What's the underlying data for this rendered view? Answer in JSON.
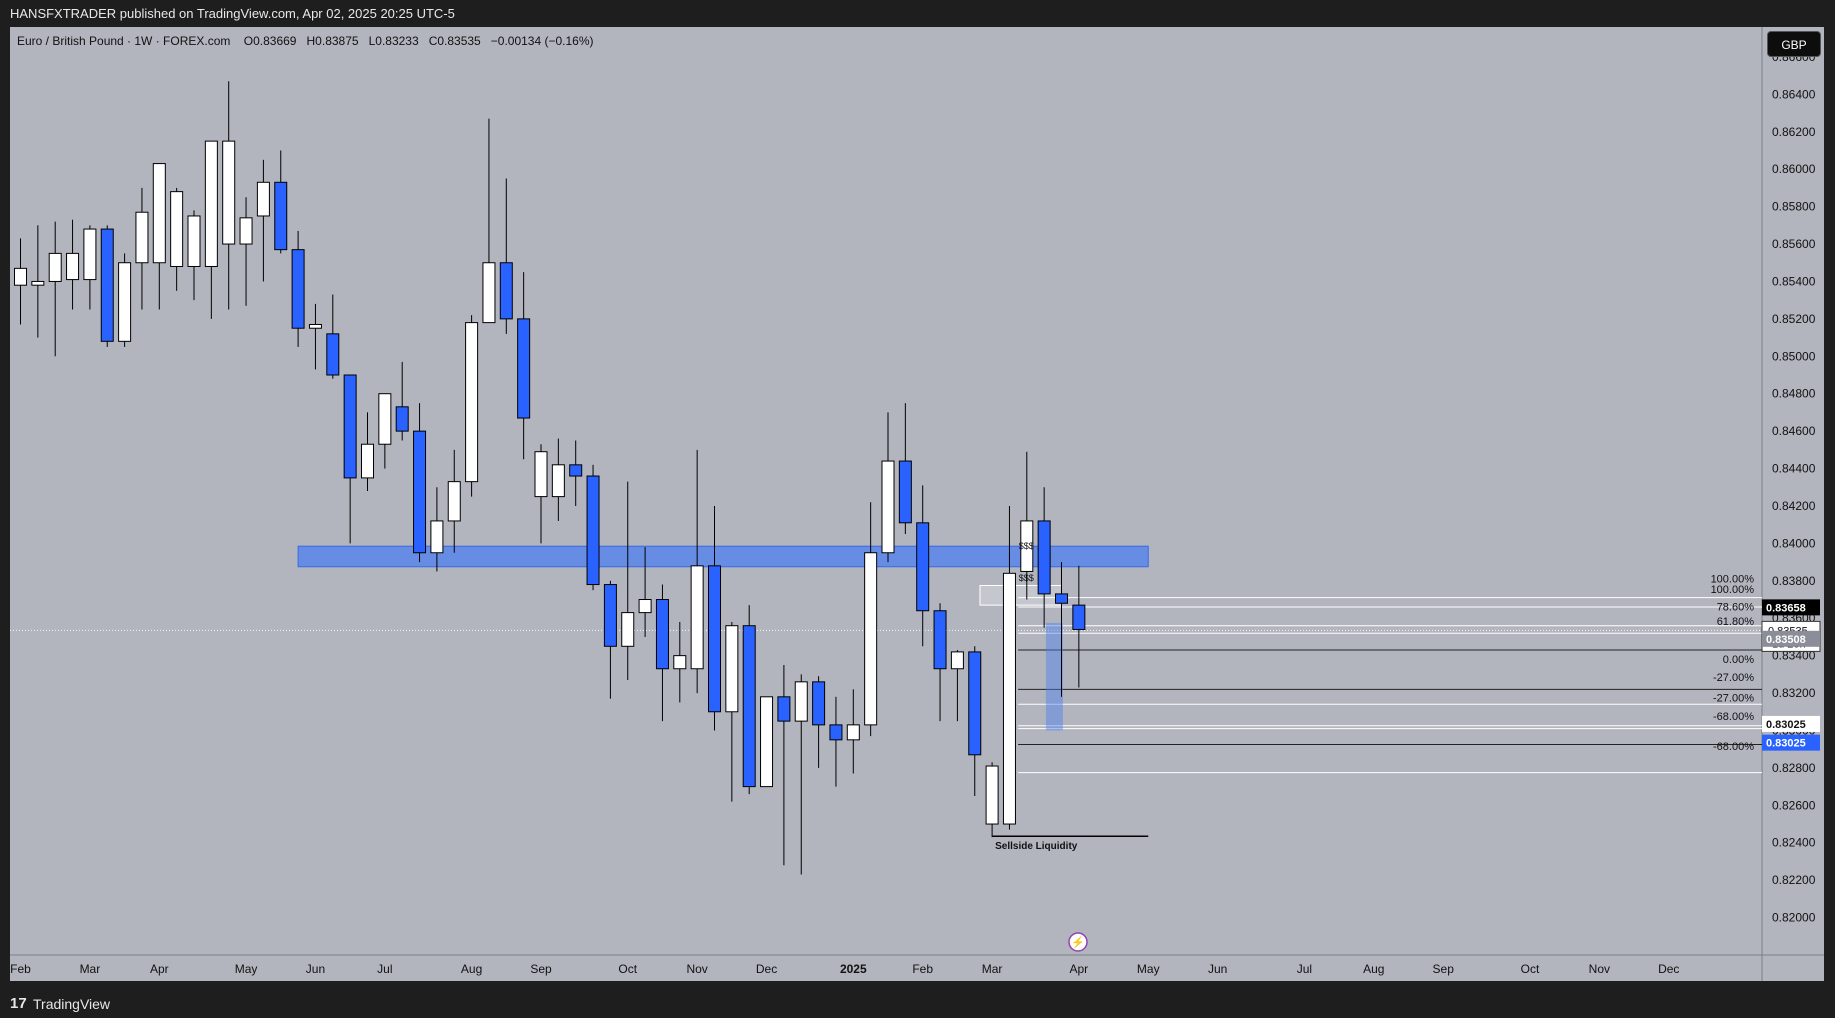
{
  "header": {
    "published_text": "HANSFXTRADER published on TradingView.com, Apr 02, 2025 20:25 UTC-5"
  },
  "legend": {
    "symbol": "Euro / British Pound · 1W · FOREX.com",
    "open": "O0.83669",
    "high": "H0.83875",
    "low": "L0.83233",
    "close": "C0.83535",
    "change": "−0.00134 (−0.16%)"
  },
  "currency_button": "GBP",
  "footer": {
    "brand": "TradingView",
    "logo_mark": "17"
  },
  "colors": {
    "background": "#b2b5be",
    "bull": "#ffffff",
    "bear": "#2962ff",
    "wick": "#000000",
    "zone": "#4c7ff0",
    "axis_bg": "#b2b5be",
    "outer": "#1e1e1e"
  },
  "annotations": {
    "sellside": "Sellside Liquidity",
    "sss_1": "$$$",
    "sss_2": "$$$",
    "fib_labels": [
      "100.00%",
      "100.00%",
      "78.60%",
      "61.80%",
      "0.00%",
      "-27.00%",
      "-27.00%",
      "-68.00%",
      "-68.00%"
    ]
  },
  "price_labels": {
    "p1": "0.83658",
    "p2": "0.83535",
    "p2_sub": "1d 20h",
    "p3": "0.83508",
    "p4": "0.83025",
    "p5": "0.83025"
  },
  "chart_data": {
    "type": "candlestick",
    "title": "Euro / British Pound · 1W · FOREX.com",
    "ylim": [
      0.818,
      0.8676
    ],
    "yticks": [
      0.82,
      0.822,
      0.824,
      0.826,
      0.828,
      0.83,
      0.832,
      0.834,
      0.836,
      0.838,
      0.84,
      0.842,
      0.844,
      0.846,
      0.848,
      0.85,
      0.852,
      0.854,
      0.856,
      0.858,
      0.86,
      0.862,
      0.864,
      0.866
    ],
    "ytick_labels": [
      "0.82000",
      "0.82200",
      "0.82400",
      "0.82600",
      "0.82800",
      "0.83000",
      "0.83200",
      "0.83400",
      "0.83600",
      "0.83800",
      "0.84000",
      "0.84200",
      "0.84400",
      "0.84600",
      "0.84800",
      "0.85000",
      "0.85200",
      "0.85400",
      "0.85600",
      "0.85800",
      "0.86000",
      "0.86200",
      "0.86400",
      "0.86600"
    ],
    "xtick_labels": [
      {
        "label": "Feb",
        "week": 0
      },
      {
        "label": "Mar",
        "week": 4
      },
      {
        "label": "Apr",
        "week": 8
      },
      {
        "label": "May",
        "week": 13
      },
      {
        "label": "Jun",
        "week": 17
      },
      {
        "label": "Jul",
        "week": 21
      },
      {
        "label": "Aug",
        "week": 26
      },
      {
        "label": "Sep",
        "week": 30
      },
      {
        "label": "Oct",
        "week": 35
      },
      {
        "label": "Nov",
        "week": 39
      },
      {
        "label": "Dec",
        "week": 43
      },
      {
        "label": "2025",
        "week": 48,
        "bold": true
      },
      {
        "label": "Feb",
        "week": 52
      },
      {
        "label": "Mar",
        "week": 56
      },
      {
        "label": "Apr",
        "week": 61
      },
      {
        "label": "May",
        "week": 65
      },
      {
        "label": "Jun",
        "week": 69
      },
      {
        "label": "Jul",
        "week": 74
      },
      {
        "label": "Aug",
        "week": 78
      },
      {
        "label": "Sep",
        "week": 82
      },
      {
        "label": "Oct",
        "week": 87
      },
      {
        "label": "Nov",
        "week": 91
      },
      {
        "label": "Dec",
        "week": 95
      }
    ],
    "candles": [
      {
        "o": 0.8538,
        "h": 0.8563,
        "l": 0.8517,
        "c": 0.8547
      },
      {
        "o": 0.8538,
        "h": 0.857,
        "l": 0.851,
        "c": 0.854
      },
      {
        "o": 0.854,
        "h": 0.8572,
        "l": 0.85,
        "c": 0.8555
      },
      {
        "o": 0.8541,
        "h": 0.8573,
        "l": 0.8525,
        "c": 0.8555
      },
      {
        "o": 0.8541,
        "h": 0.857,
        "l": 0.8525,
        "c": 0.8568
      },
      {
        "o": 0.8568,
        "h": 0.857,
        "l": 0.8505,
        "c": 0.8508
      },
      {
        "o": 0.8508,
        "h": 0.8555,
        "l": 0.8505,
        "c": 0.855
      },
      {
        "o": 0.855,
        "h": 0.859,
        "l": 0.8525,
        "c": 0.8577
      },
      {
        "o": 0.855,
        "h": 0.8603,
        "l": 0.8525,
        "c": 0.8603
      },
      {
        "o": 0.8548,
        "h": 0.859,
        "l": 0.8535,
        "c": 0.8588
      },
      {
        "o": 0.8548,
        "h": 0.8578,
        "l": 0.853,
        "c": 0.8575
      },
      {
        "o": 0.8548,
        "h": 0.8615,
        "l": 0.852,
        "c": 0.8615
      },
      {
        "o": 0.856,
        "h": 0.8647,
        "l": 0.8525,
        "c": 0.8615
      },
      {
        "o": 0.856,
        "h": 0.8585,
        "l": 0.8527,
        "c": 0.8574
      },
      {
        "o": 0.8575,
        "h": 0.8605,
        "l": 0.854,
        "c": 0.8593
      },
      {
        "o": 0.8593,
        "h": 0.861,
        "l": 0.8555,
        "c": 0.8557
      },
      {
        "o": 0.8557,
        "h": 0.8567,
        "l": 0.8505,
        "c": 0.8515
      },
      {
        "o": 0.8515,
        "h": 0.8528,
        "l": 0.8493,
        "c": 0.8517
      },
      {
        "o": 0.8512,
        "h": 0.8533,
        "l": 0.8488,
        "c": 0.849
      },
      {
        "o": 0.849,
        "h": 0.849,
        "l": 0.84,
        "c": 0.8435
      },
      {
        "o": 0.8435,
        "h": 0.847,
        "l": 0.8428,
        "c": 0.8453
      },
      {
        "o": 0.8453,
        "h": 0.848,
        "l": 0.844,
        "c": 0.848
      },
      {
        "o": 0.8473,
        "h": 0.8497,
        "l": 0.8455,
        "c": 0.846
      },
      {
        "o": 0.846,
        "h": 0.8475,
        "l": 0.839,
        "c": 0.8395
      },
      {
        "o": 0.8395,
        "h": 0.843,
        "l": 0.8385,
        "c": 0.8412
      },
      {
        "o": 0.8412,
        "h": 0.845,
        "l": 0.8395,
        "c": 0.8433
      },
      {
        "o": 0.8433,
        "h": 0.8522,
        "l": 0.8425,
        "c": 0.8518
      },
      {
        "o": 0.8518,
        "h": 0.8627,
        "l": 0.8518,
        "c": 0.855
      },
      {
        "o": 0.855,
        "h": 0.8595,
        "l": 0.8512,
        "c": 0.852
      },
      {
        "o": 0.852,
        "h": 0.8545,
        "l": 0.8445,
        "c": 0.8467
      },
      {
        "o": 0.8425,
        "h": 0.8453,
        "l": 0.84,
        "c": 0.8449
      },
      {
        "o": 0.8425,
        "h": 0.8456,
        "l": 0.8412,
        "c": 0.8442
      },
      {
        "o": 0.8442,
        "h": 0.8455,
        "l": 0.842,
        "c": 0.8436
      },
      {
        "o": 0.8436,
        "h": 0.8442,
        "l": 0.8375,
        "c": 0.8378
      },
      {
        "o": 0.8378,
        "h": 0.838,
        "l": 0.8317,
        "c": 0.8345
      },
      {
        "o": 0.8345,
        "h": 0.8433,
        "l": 0.8327,
        "c": 0.8363
      },
      {
        "o": 0.8363,
        "h": 0.8398,
        "l": 0.835,
        "c": 0.837
      },
      {
        "o": 0.837,
        "h": 0.8378,
        "l": 0.8305,
        "c": 0.8333
      },
      {
        "o": 0.8333,
        "h": 0.8358,
        "l": 0.8315,
        "c": 0.834
      },
      {
        "o": 0.8333,
        "h": 0.845,
        "l": 0.832,
        "c": 0.8388
      },
      {
        "o": 0.8388,
        "h": 0.842,
        "l": 0.83,
        "c": 0.831
      },
      {
        "o": 0.831,
        "h": 0.8358,
        "l": 0.8262,
        "c": 0.8356
      },
      {
        "o": 0.8356,
        "h": 0.8367,
        "l": 0.8266,
        "c": 0.827
      },
      {
        "o": 0.827,
        "h": 0.8318,
        "l": 0.827,
        "c": 0.8318
      },
      {
        "o": 0.8318,
        "h": 0.8335,
        "l": 0.8228,
        "c": 0.8305
      },
      {
        "o": 0.8305,
        "h": 0.833,
        "l": 0.8223,
        "c": 0.8326
      },
      {
        "o": 0.8326,
        "h": 0.8329,
        "l": 0.828,
        "c": 0.8303
      },
      {
        "o": 0.8303,
        "h": 0.8318,
        "l": 0.827,
        "c": 0.8295
      },
      {
        "o": 0.8295,
        "h": 0.8322,
        "l": 0.8277,
        "c": 0.8303
      },
      {
        "o": 0.8303,
        "h": 0.8422,
        "l": 0.8297,
        "c": 0.8395
      },
      {
        "o": 0.8395,
        "h": 0.847,
        "l": 0.839,
        "c": 0.8444
      },
      {
        "o": 0.8444,
        "h": 0.8475,
        "l": 0.8405,
        "c": 0.8411
      },
      {
        "o": 0.8411,
        "h": 0.8431,
        "l": 0.8345,
        "c": 0.8364
      },
      {
        "o": 0.8364,
        "h": 0.8368,
        "l": 0.8305,
        "c": 0.8333
      },
      {
        "o": 0.8333,
        "h": 0.8343,
        "l": 0.8305,
        "c": 0.8342
      },
      {
        "o": 0.8342,
        "h": 0.8345,
        "l": 0.8265,
        "c": 0.8287
      },
      {
        "o": 0.825,
        "h": 0.8283,
        "l": 0.8243,
        "c": 0.8281
      },
      {
        "o": 0.825,
        "h": 0.842,
        "l": 0.8247,
        "c": 0.8384
      },
      {
        "o": 0.8385,
        "h": 0.8449,
        "l": 0.837,
        "c": 0.8412
      },
      {
        "o": 0.8412,
        "h": 0.843,
        "l": 0.8355,
        "c": 0.8373
      },
      {
        "o": 0.8373,
        "h": 0.839,
        "l": 0.8318,
        "c": 0.8368
      },
      {
        "o": 0.8367,
        "h": 0.8388,
        "l": 0.8323,
        "c": 0.8354
      }
    ],
    "zones": [
      {
        "name": "blue-supply-demand-zone",
        "y_top": 0.83985,
        "y_bottom": 0.83875,
        "x_start_week": 16,
        "x_end_week": 65
      }
    ],
    "levels": [
      {
        "name": "sellside-liquidity",
        "y": 0.82435,
        "x_start_week": 56,
        "x_end_week": 65,
        "label": "Sellside Liquidity"
      }
    ],
    "price_axis_tags": [
      0.83658,
      0.83535,
      0.83508,
      0.83025,
      0.83025
    ]
  }
}
